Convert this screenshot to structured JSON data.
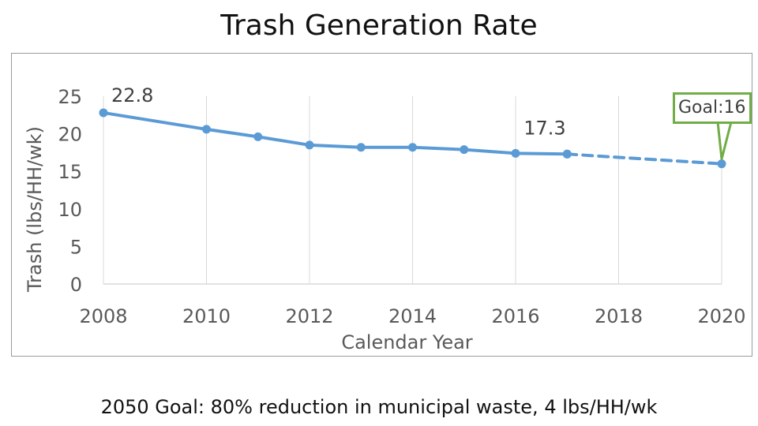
{
  "slide": {
    "title": "Trash Generation Rate",
    "footnote": "2050 Goal: 80% reduction in municipal waste, 4 lbs/HH/wk"
  },
  "chart_data": {
    "type": "line",
    "title": "",
    "xlabel": "Calendar Year",
    "ylabel": "Trash (lbs/HH/wk)",
    "xlim": [
      2008,
      2020
    ],
    "ylim": [
      0,
      25
    ],
    "x_ticks": [
      "2008",
      "2010",
      "2012",
      "2014",
      "2016",
      "2018",
      "2020"
    ],
    "y_ticks": [
      "0",
      "5",
      "10",
      "15",
      "20",
      "25"
    ],
    "grid": "vertical",
    "legend": "none",
    "series": [
      {
        "style": "solid",
        "x": [
          2008,
          2010,
          2011,
          2012,
          2013,
          2014,
          2015,
          2016,
          2017
        ],
        "y": [
          22.8,
          20.6,
          19.6,
          18.5,
          18.2,
          18.2,
          17.9,
          17.4,
          17.3
        ]
      },
      {
        "style": "dashed",
        "x": [
          2017,
          2020
        ],
        "y": [
          17.3,
          16
        ]
      }
    ],
    "annotations": [
      {
        "text": "22.8",
        "x": 2008,
        "y": 22.8
      },
      {
        "text": "17.3",
        "x": 2017,
        "y": 17.3
      },
      {
        "text": "Goal:16",
        "x": 2020,
        "y": 16,
        "style": "callout"
      }
    ],
    "colors": {
      "line": "#5b9bd5",
      "goal": "#70ad47",
      "text": "#595959",
      "grid": "#d9d9d9"
    }
  }
}
